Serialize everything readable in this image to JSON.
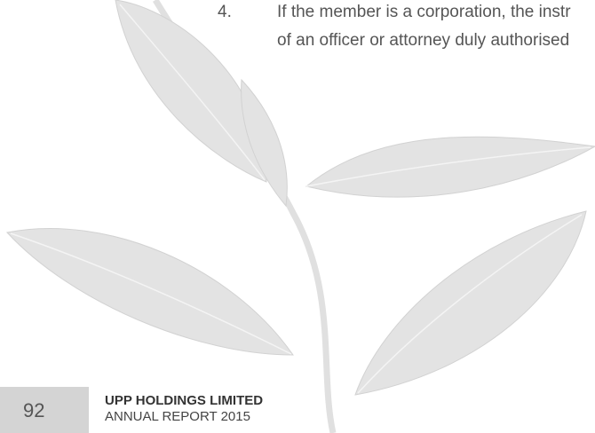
{
  "item": {
    "number": "4.",
    "lines": [
      "If the member is a corporation, the instr",
      "of an officer or attorney duly authorised"
    ]
  },
  "footer": {
    "page": "92",
    "company": "UPP HOLDINGS LIMITED",
    "report": "ANNUAL REPORT 2015"
  }
}
